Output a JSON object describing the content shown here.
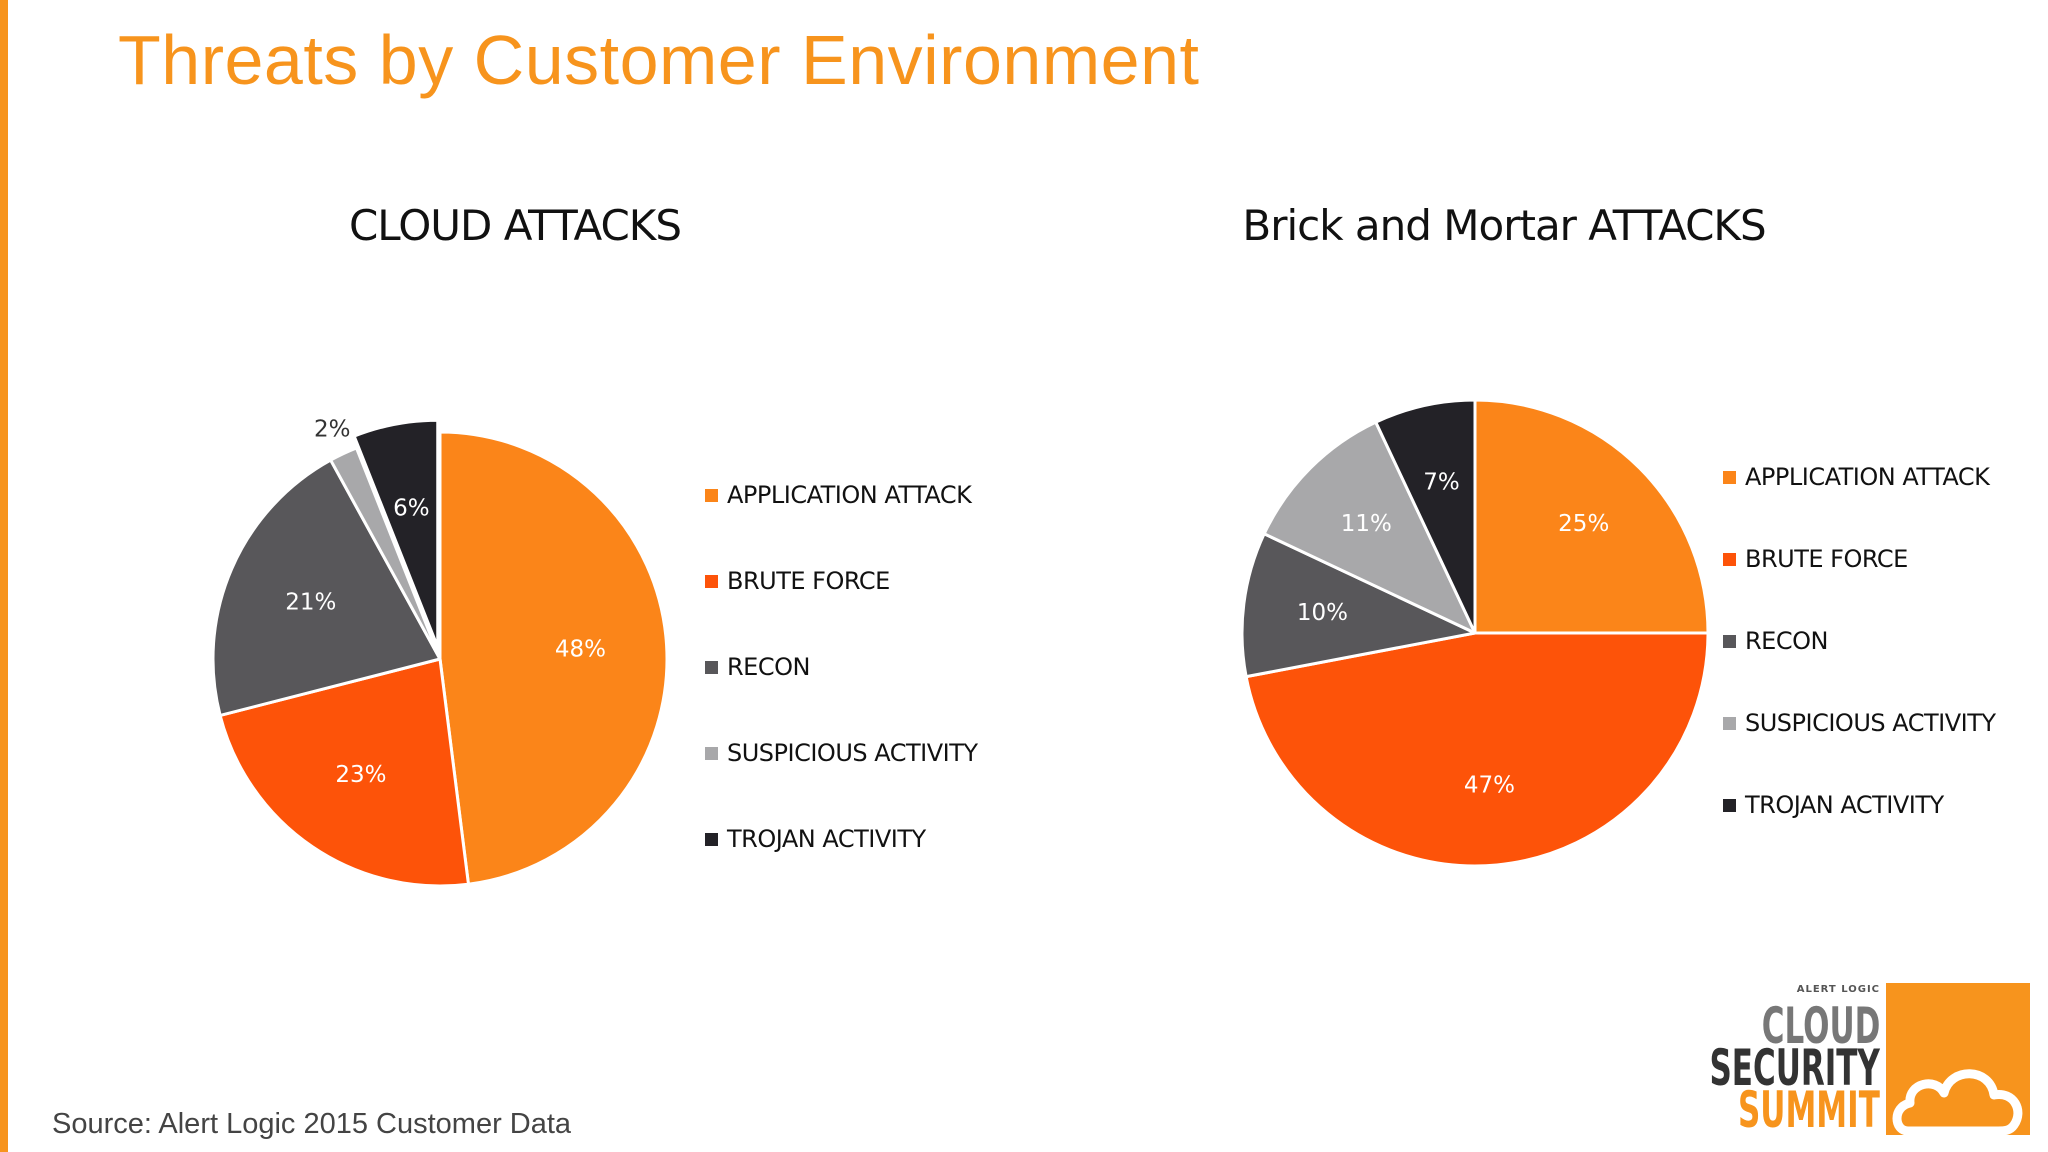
{
  "slide": {
    "title": "Threats by Customer Environment",
    "source": "Source: Alert Logic 2015 Customer Data",
    "accent_color": "#f7941d"
  },
  "logo": {
    "brand": "ALERT LOGIC",
    "line1": "CLOUD",
    "line2": "SECURITY",
    "line3": "SUMMIT",
    "icon": "cloud-icon"
  },
  "chart_data": [
    {
      "type": "pie",
      "title": "CLOUD ATTACKS",
      "legend_position": "right",
      "categories": [
        "APPLICATION ATTACK",
        "BRUTE FORCE",
        "RECON",
        "SUSPICIOUS ACTIVITY",
        "TROJAN ACTIVITY"
      ],
      "values": [
        48,
        23,
        21,
        2,
        6
      ],
      "labels": [
        "48%",
        "23%",
        "21%",
        "2%",
        "6%"
      ],
      "colors": [
        "#fb8519",
        "#fd5309",
        "#58575a",
        "#a8a8aa",
        "#232227"
      ],
      "exploded": [
        "TROJAN ACTIVITY"
      ]
    },
    {
      "type": "pie",
      "title": "Brick and Mortar ATTACKS",
      "legend_position": "right",
      "categories": [
        "APPLICATION ATTACK",
        "BRUTE FORCE",
        "RECON",
        "SUSPICIOUS ACTIVITY",
        "TROJAN ACTIVITY"
      ],
      "values": [
        25,
        47,
        10,
        11,
        7
      ],
      "labels": [
        "25%",
        "47%",
        "10%",
        "11%",
        "7%"
      ],
      "colors": [
        "#fb8519",
        "#fd5309",
        "#58575a",
        "#a8a8aa",
        "#232227"
      ]
    }
  ]
}
